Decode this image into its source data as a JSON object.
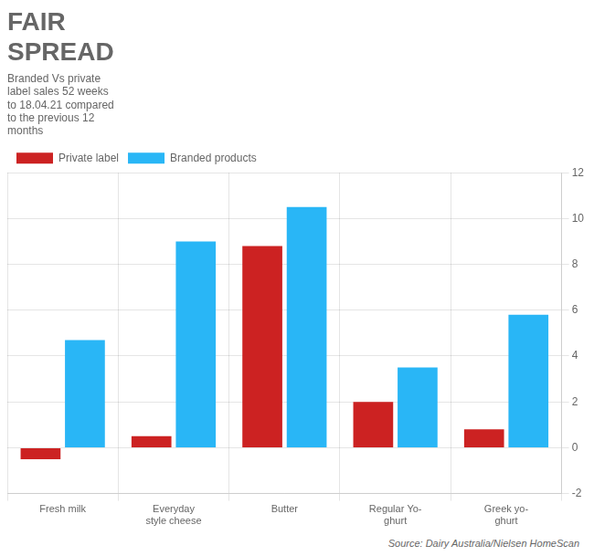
{
  "chart_data": {
    "type": "bar",
    "title": "FAIR\nSPREAD",
    "subtitle": "Branded Vs private\nlabel sales 52 weeks\nto 18.04.21 compared\nto the previous 12\nmonths",
    "annotations": [
      "Source: Dairy Australia/Nielsen HomeScan"
    ],
    "categories": [
      "Fresh milk",
      "Everyday\nstyle cheese",
      "Butter",
      "Regular Yo-\nghurt",
      "Greek yo-\nghurt"
    ],
    "series": [
      {
        "name": "Private label",
        "color": "#cc2222",
        "values": [
          -0.5,
          0.5,
          8.8,
          2.0,
          0.8
        ]
      },
      {
        "name": "Branded products",
        "color": "#29b6f6",
        "values": [
          4.7,
          9.0,
          10.5,
          3.5,
          5.8
        ]
      }
    ],
    "ylim": [
      -2,
      12
    ],
    "yticks": [
      -2,
      0,
      2,
      4,
      6,
      8,
      10,
      12
    ],
    "grid": true,
    "legend": "top"
  }
}
